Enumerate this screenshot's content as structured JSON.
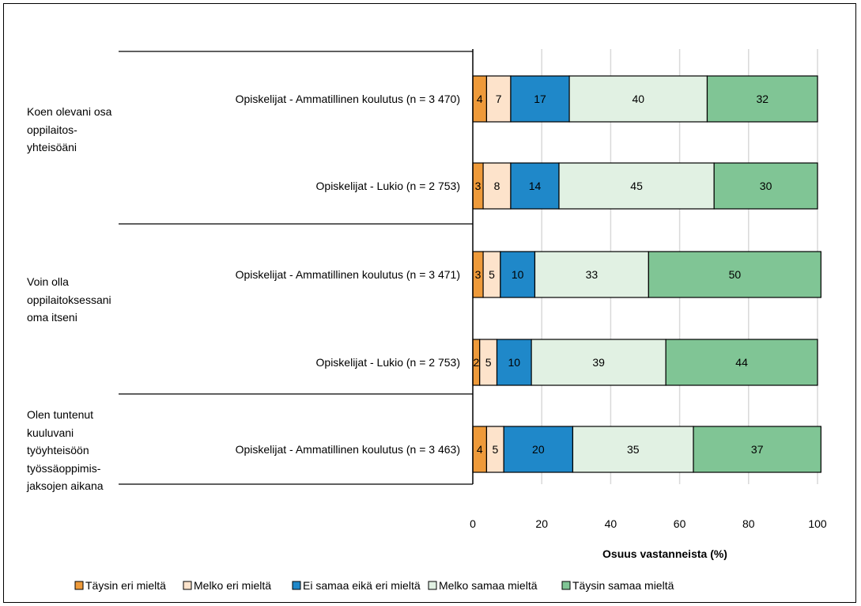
{
  "chart_data": {
    "type": "stacked-bar-horizontal",
    "xlabel": "Osuus vastanneista (%)",
    "xlim": [
      0,
      100
    ],
    "xticks": [
      0,
      20,
      40,
      60,
      80,
      100
    ],
    "grid": true,
    "legend_position": "bottom",
    "series": [
      {
        "name": "Täysin eri mieltä",
        "color": "#ee9a3a"
      },
      {
        "name": "Melko eri mieltä",
        "color": "#fde3cb"
      },
      {
        "name": "Ei samaa eikä eri mieltä",
        "color": "#1f88c9"
      },
      {
        "name": "Melko samaa mieltä",
        "color": "#e1f1e3"
      },
      {
        "name": "Täysin samaa mieltä",
        "color": "#80c595"
      }
    ],
    "groups": [
      {
        "label": [
          "Koen olevani osa",
          "oppilaitos-",
          "yhteisöäni"
        ],
        "bars": [
          {
            "label": "Opiskelijat - Ammatillinen koulutus (n = 3 470)",
            "values": [
              4,
              7,
              17,
              40,
              32
            ]
          },
          {
            "label": "Opiskelijat - Lukio (n = 2 753)",
            "values": [
              3,
              8,
              14,
              45,
              30
            ]
          }
        ]
      },
      {
        "label": [
          "Voin olla",
          "oppilaitoksessani",
          "oma itseni"
        ],
        "bars": [
          {
            "label": "Opiskelijat - Ammatillinen koulutus (n = 3 471)",
            "values": [
              3,
              5,
              10,
              33,
              50
            ]
          },
          {
            "label": "Opiskelijat - Lukio (n = 2 753)",
            "values": [
              2,
              5,
              10,
              39,
              44
            ]
          }
        ]
      },
      {
        "label": [
          "Olen tuntenut",
          "kuuluvani",
          "työyhteisöön",
          "työssäoppimis-",
          "jaksojen aikana"
        ],
        "bars": [
          {
            "label": "Opiskelijat - Ammatillinen koulutus (n = 3 463)",
            "values": [
              4,
              5,
              20,
              35,
              37
            ]
          }
        ]
      }
    ]
  }
}
